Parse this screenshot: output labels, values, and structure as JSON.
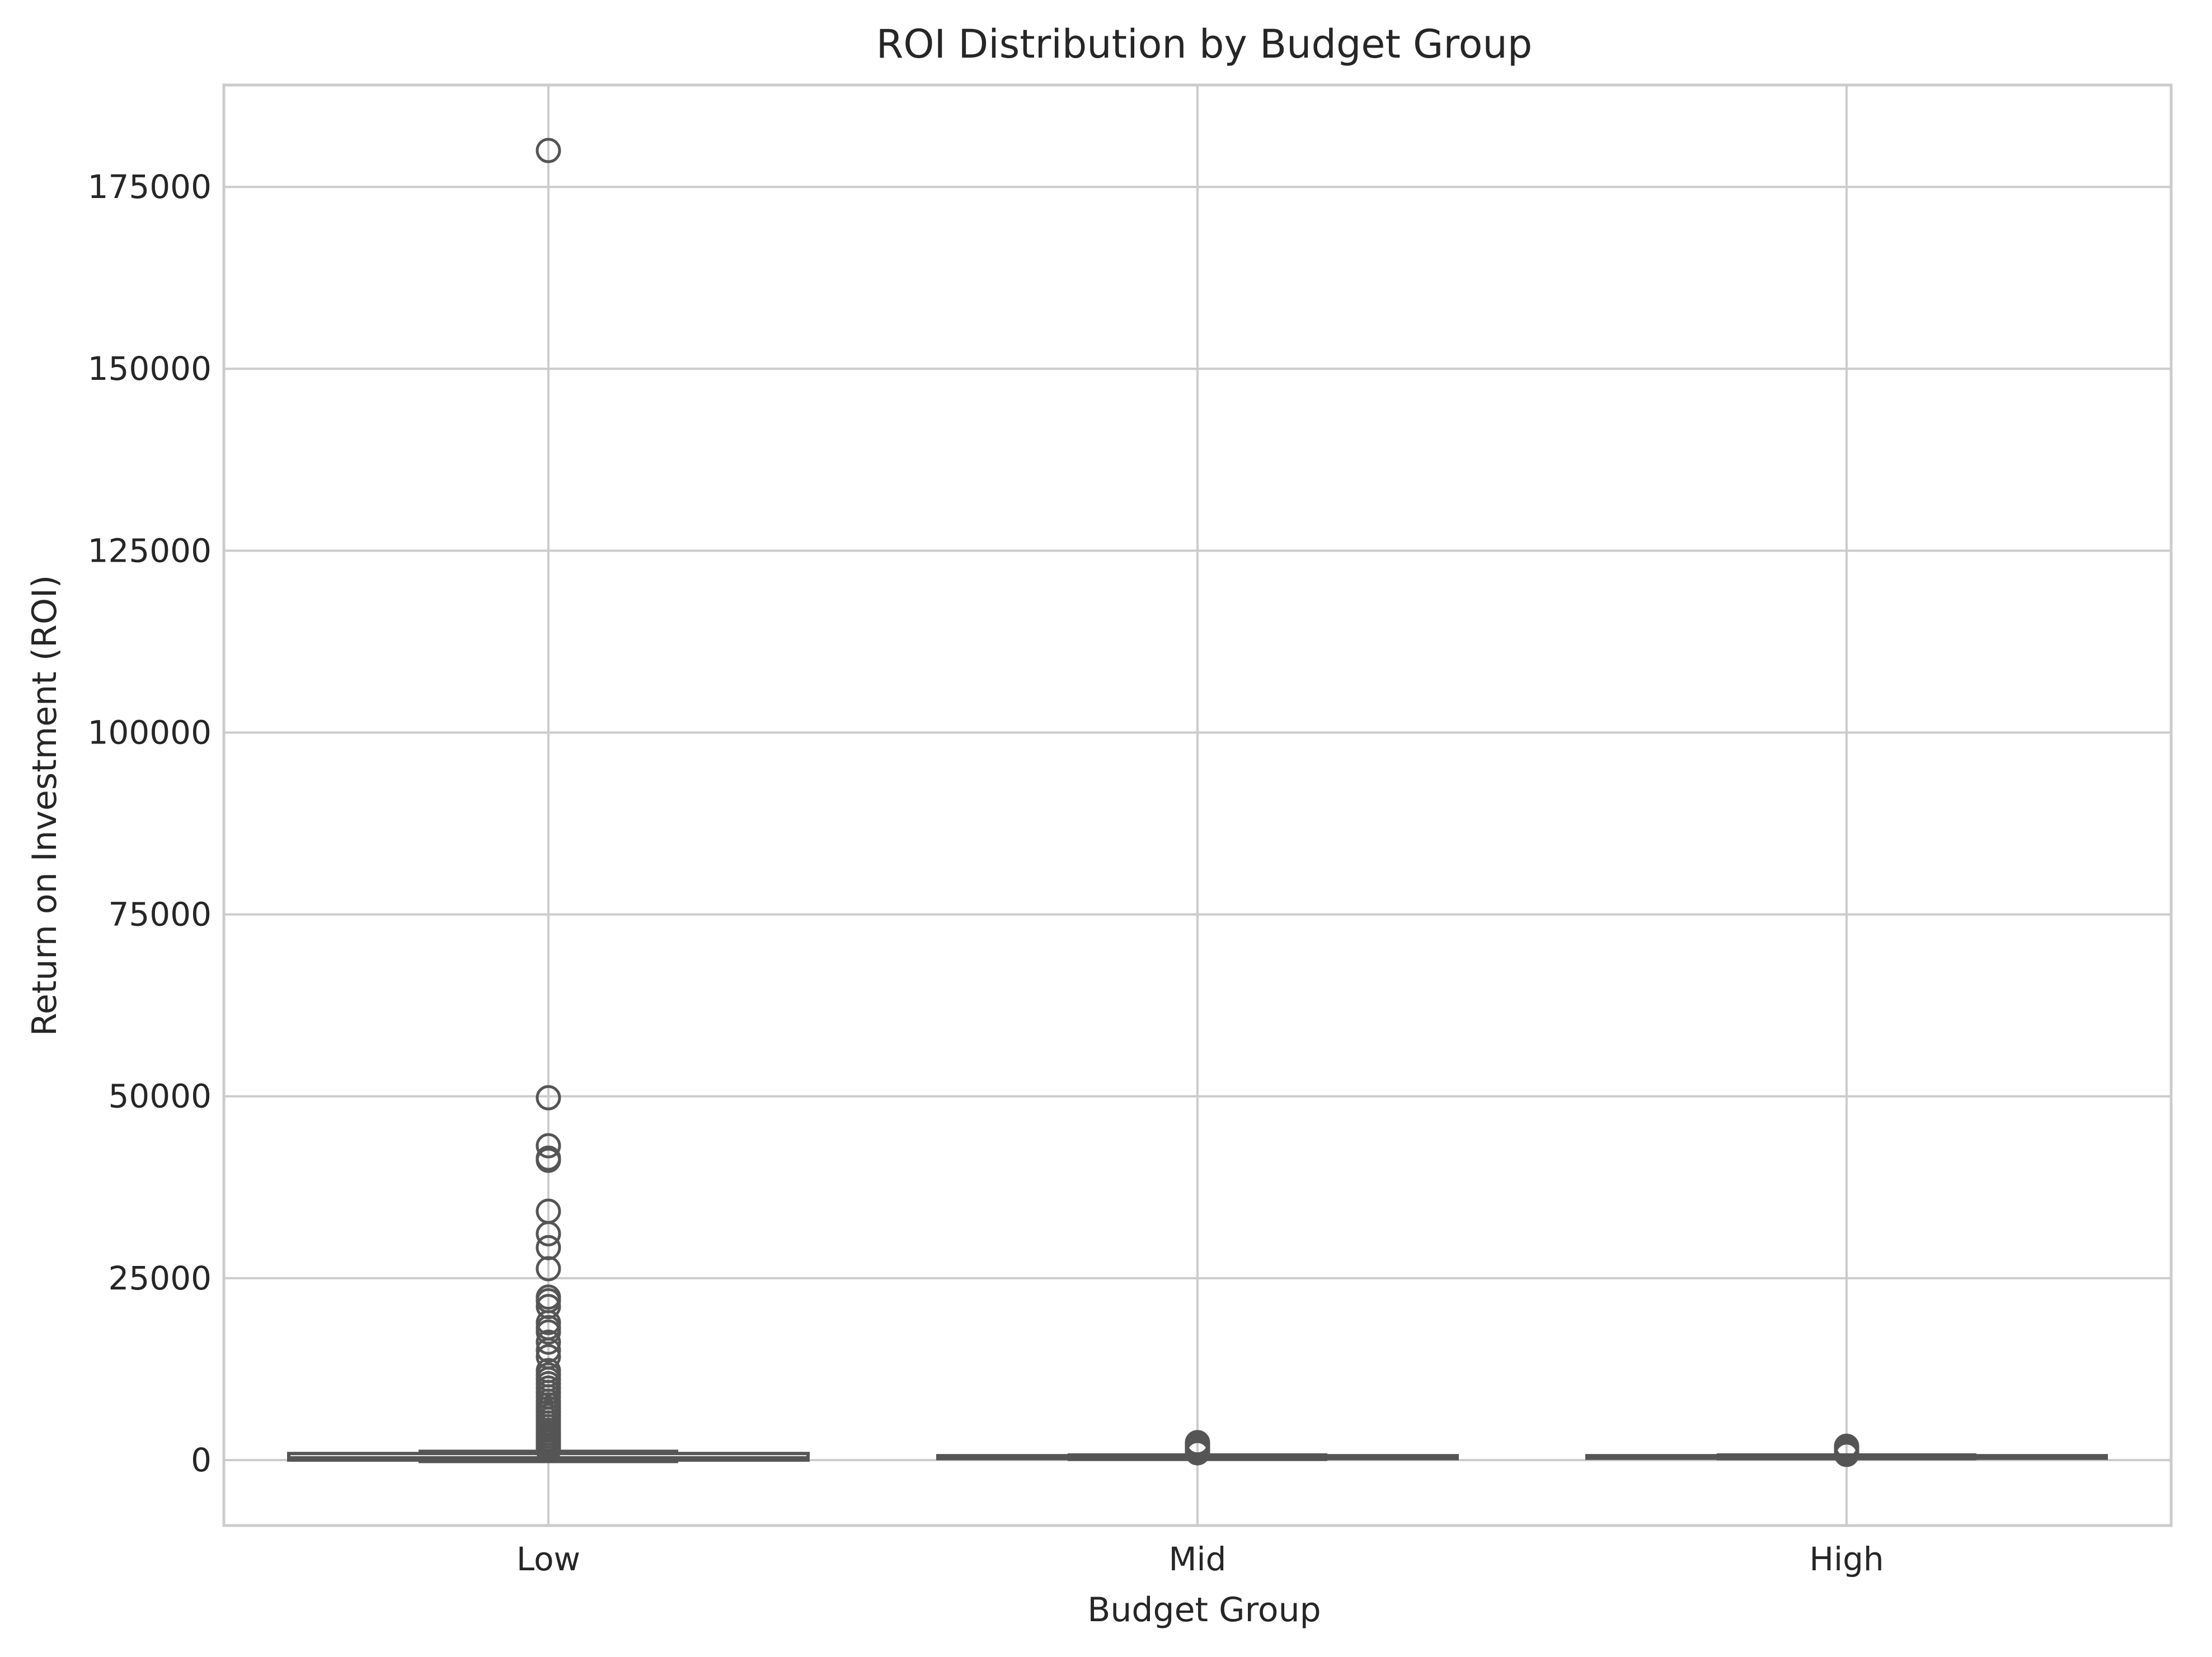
{
  "chart_data": {
    "type": "box",
    "title": "ROI Distribution by Budget Group",
    "xlabel": "Budget Group",
    "ylabel": "Return on Investment (ROI)",
    "ylim": [
      -9000,
      189000
    ],
    "yticks": [
      0,
      25000,
      50000,
      75000,
      100000,
      125000,
      150000,
      175000
    ],
    "ytick_labels": [
      "0",
      "25000",
      "50000",
      "75000",
      "100000",
      "125000",
      "150000",
      "175000"
    ],
    "categories": [
      "Low",
      "Mid",
      "High"
    ],
    "grid": true,
    "legend": "none",
    "colors": {
      "box_face": "#ffffff",
      "box_edge": "#555555",
      "grid": "#cccccc",
      "spine": "#cccccc",
      "text": "#262626"
    },
    "series": [
      {
        "category": "Low",
        "whisker_low": -200,
        "q1": 0,
        "median": 300,
        "q3": 900,
        "whisker_high": 1200,
        "outliers": [
          180000,
          49800,
          43200,
          41500,
          41200,
          34200,
          31100,
          29200,
          26300,
          22400,
          21900,
          21100,
          18900,
          18200,
          17600,
          16200,
          15100,
          14200,
          12300,
          11700,
          11100,
          10500,
          9900,
          9300,
          8700,
          8100,
          7600,
          7100,
          6600,
          6100,
          5600,
          5100,
          4600,
          4100,
          3700,
          3300,
          2900,
          2500,
          2100,
          1800,
          1500,
          1300
        ]
      },
      {
        "category": "Mid",
        "whisker_low": 100,
        "q1": 200,
        "median": 400,
        "q3": 600,
        "whisker_high": 700,
        "outliers": [
          2400,
          2200,
          2000,
          1800,
          1600,
          1400,
          1200,
          1000
        ]
      },
      {
        "category": "High",
        "whisker_low": 200,
        "q1": 250,
        "median": 400,
        "q3": 600,
        "whisker_high": 700,
        "outliers": [
          1900,
          1700,
          1500,
          1300,
          1100,
          950,
          850,
          780
        ]
      }
    ]
  }
}
